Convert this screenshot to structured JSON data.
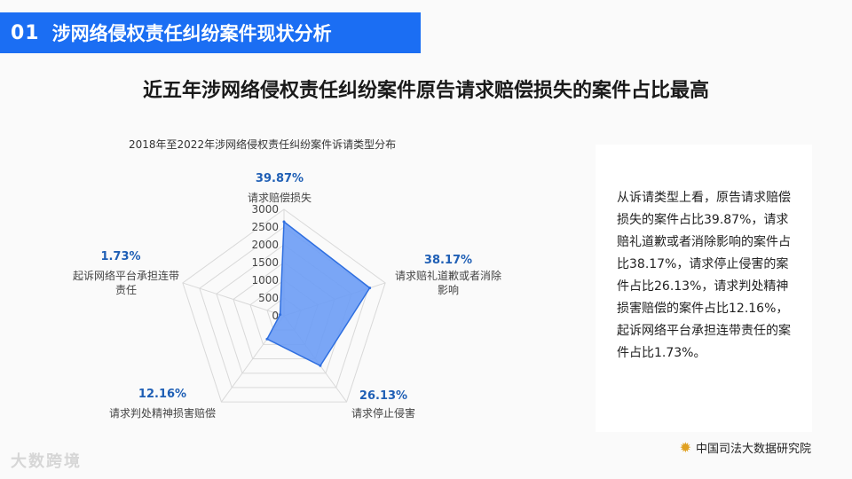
{
  "header": {
    "number": "01",
    "title": "涉网络侵权责任纠纷案件现状分析"
  },
  "headline": "近五年涉网络侵权责任纠纷案件原告请求赔偿损失的案件占比最高",
  "chart_data": {
    "type": "radar",
    "title": "2018年至2022年涉网络侵权责任纠纷案件诉请类型分布",
    "categories": [
      "请求赔偿损失",
      "请求赔礼道歉或者消除影响",
      "请求停止侵害",
      "请求判处精神损害赔偿",
      "起诉网络平台承担连带责任"
    ],
    "percent_labels": [
      "39.87%",
      "38.17%",
      "26.13%",
      "12.16%",
      "1.73%"
    ],
    "values": [
      2650,
      2540,
      1740,
      810,
      115
    ],
    "axis_ticks": [
      0,
      500,
      1000,
      1500,
      2000,
      2500,
      3000
    ],
    "rmax": 3000,
    "colors": {
      "fill": "#6b9cf5",
      "stroke": "#2f6fe0",
      "grid": "#d9d9d9"
    }
  },
  "textbox": {
    "text": "从诉请类型上看，原告请求赔偿损失的案件占比39.87%，请求赔礼道歉或者消除影响的案件占比38.17%，请求停止侵害的案件占比26.13%，请求判处精神损害赔偿的案件占比12.16%，起诉网络平台承担连带责任的案件占比1.73%。"
  },
  "source": {
    "icon": "sun-logo-icon",
    "label": "中国司法大数据研究院"
  },
  "watermark": "大数跨境"
}
